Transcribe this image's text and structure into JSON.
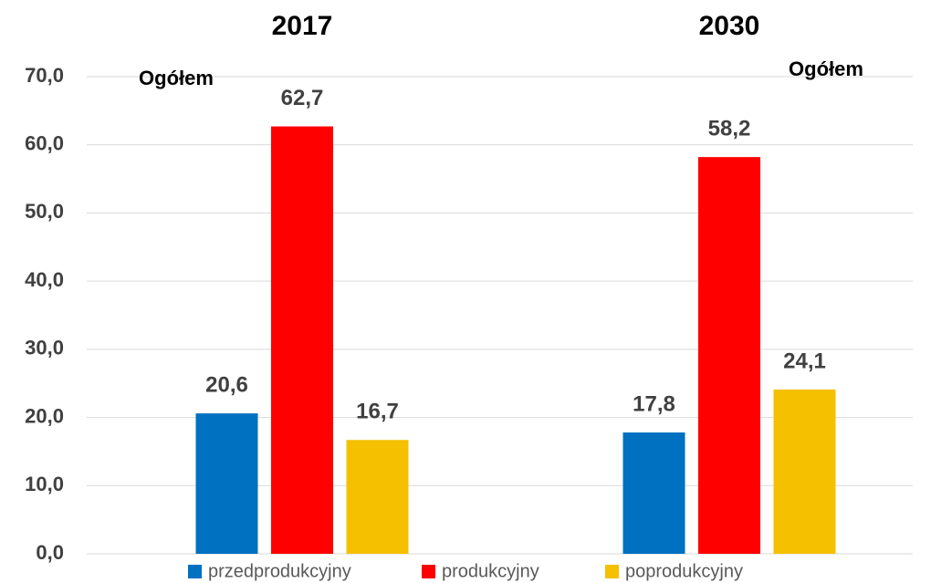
{
  "chart_data": {
    "type": "bar",
    "categories": [
      "2017",
      "2030"
    ],
    "annotations": [
      "Ogółem",
      "Ogółem"
    ],
    "series": [
      {
        "name": "przedprodukcyjny",
        "color": "#0070c0",
        "values": [
          20.6,
          17.8
        ],
        "value_labels": [
          "20,6",
          "17,8"
        ]
      },
      {
        "name": "produkcyjny",
        "color": "#ff0000",
        "values": [
          62.7,
          58.2
        ],
        "value_labels": [
          "62,7",
          "58,2"
        ]
      },
      {
        "name": "poprodukcyjny",
        "color": "#f5c000",
        "values": [
          16.7,
          24.1
        ],
        "value_labels": [
          "16,7",
          "24,1"
        ]
      }
    ],
    "ylim": [
      0,
      70
    ],
    "yticks": [
      {
        "value": 0,
        "label": "0,0"
      },
      {
        "value": 10,
        "label": "10,0"
      },
      {
        "value": 20,
        "label": "20,0"
      },
      {
        "value": 30,
        "label": "30,0"
      },
      {
        "value": 40,
        "label": "40,0"
      },
      {
        "value": 50,
        "label": "50,0"
      },
      {
        "value": 60,
        "label": "60,0"
      },
      {
        "value": 70,
        "label": "70,0"
      }
    ],
    "grid": true,
    "legend": "bottom"
  }
}
